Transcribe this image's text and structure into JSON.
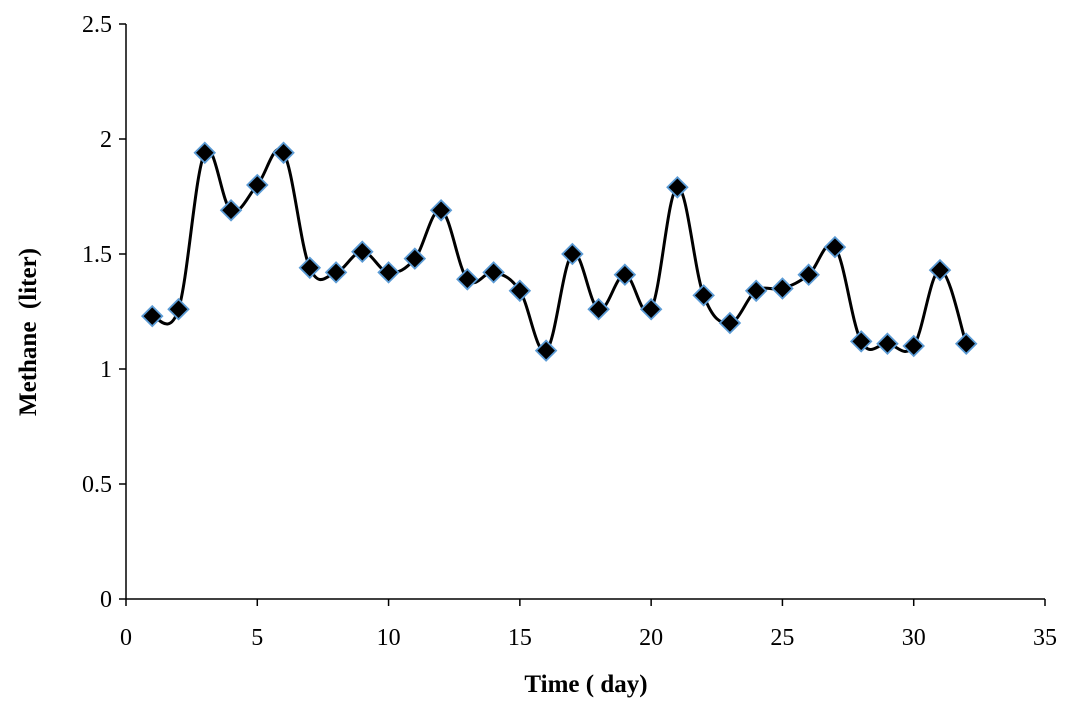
{
  "chart_data": {
    "type": "line",
    "xlabel": "Time ( day)",
    "ylabel": "Methane  (liter)",
    "xlim": [
      0,
      35
    ],
    "ylim": [
      0,
      2.5
    ],
    "x_ticks": [
      0,
      5,
      10,
      15,
      20,
      25,
      30,
      35
    ],
    "y_ticks": [
      0,
      0.5,
      1,
      1.5,
      2,
      2.5
    ],
    "x_tick_labels": [
      "0",
      "5",
      "10",
      "15",
      "20",
      "25",
      "30",
      "35"
    ],
    "y_tick_labels": [
      "0",
      "0.5",
      "1",
      "1.5",
      "2",
      "2.5"
    ],
    "grid": false,
    "legend": "none",
    "line_style": "smoothed",
    "marker": "diamond",
    "colors": {
      "line": "#000000",
      "marker_fill": "#000000",
      "marker_edge": "#5b9bd5",
      "axis": "#000000"
    },
    "series": [
      {
        "x": [
          1,
          2,
          3,
          4,
          5,
          6,
          7,
          8,
          9,
          10,
          11,
          12,
          13,
          14,
          15,
          16,
          17,
          18,
          19,
          20,
          21,
          22,
          23,
          24,
          25,
          26,
          27,
          28,
          29,
          30,
          31,
          32
        ],
        "y": [
          1.23,
          1.26,
          1.94,
          1.69,
          1.8,
          1.94,
          1.44,
          1.42,
          1.51,
          1.42,
          1.48,
          1.69,
          1.39,
          1.42,
          1.34,
          1.08,
          1.5,
          1.26,
          1.41,
          1.26,
          1.79,
          1.32,
          1.2,
          1.34,
          1.35,
          1.41,
          1.53,
          1.12,
          1.11,
          1.1,
          1.43,
          1.11
        ]
      }
    ]
  }
}
